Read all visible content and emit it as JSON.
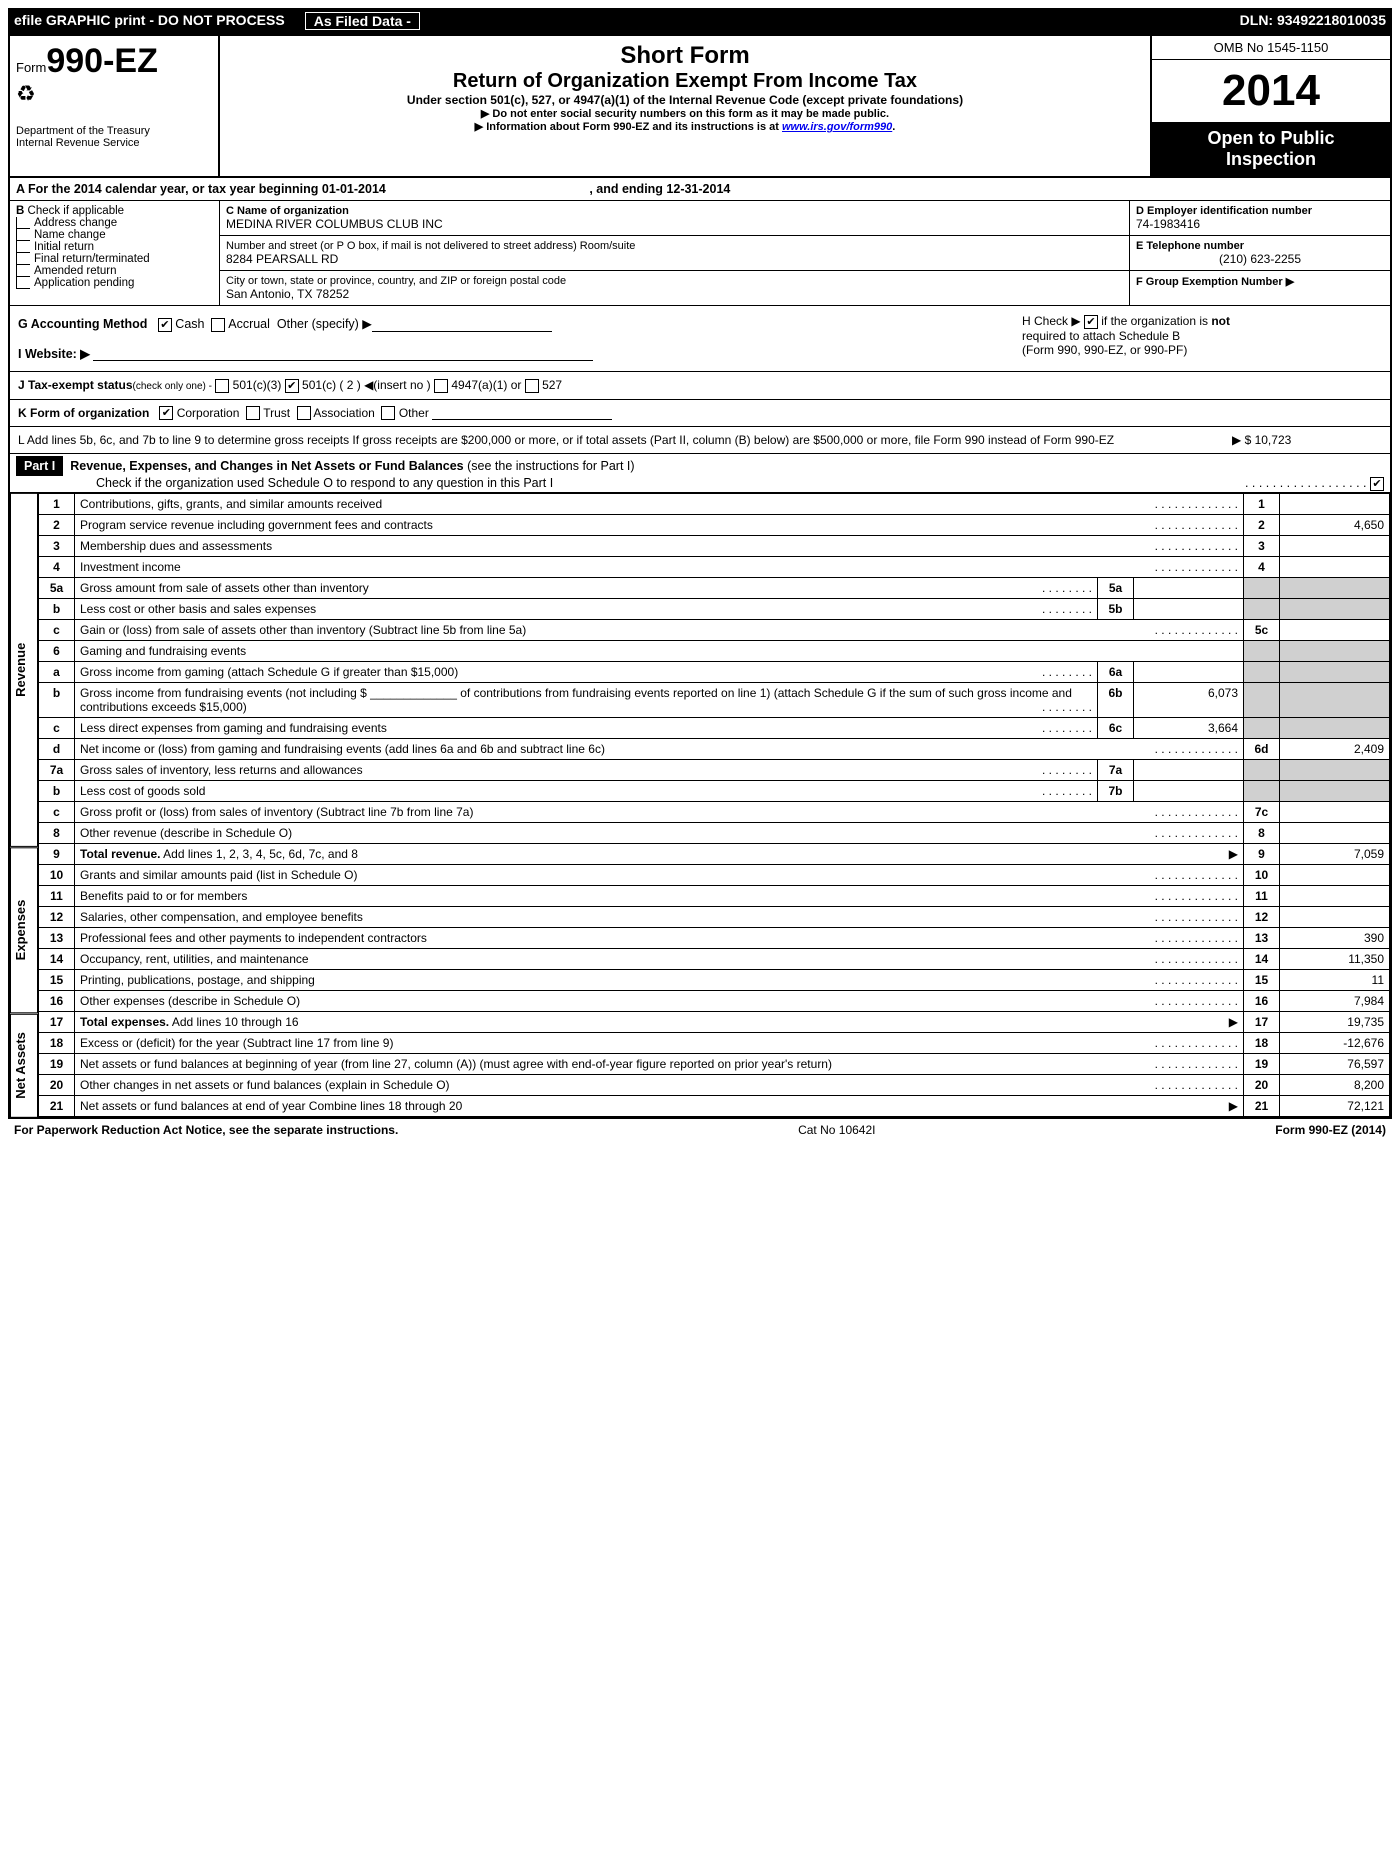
{
  "topbar": {
    "left": "efile GRAPHIC print - DO NOT PROCESS",
    "mid": "As Filed Data -",
    "right": "DLN: 93492218010035"
  },
  "header": {
    "form_prefix": "Form",
    "form_number": "990-EZ",
    "dept1": "Department of the Treasury",
    "dept2": "Internal Revenue Service",
    "title1": "Short Form",
    "title2": "Return of Organization Exempt From Income Tax",
    "subtitle": "Under section 501(c), 527, or 4947(a)(1) of the Internal Revenue Code (except private foundations)",
    "note1": "▶ Do not enter social security numbers on this form as it may be made public.",
    "note2_pre": "▶ Information about Form 990-EZ and its instructions is at ",
    "note2_link": "www.irs.gov/form990",
    "note2_post": ".",
    "omb": "OMB No 1545-1150",
    "year": "2014",
    "open1": "Open to Public",
    "open2": "Inspection"
  },
  "rowA": {
    "text_pre": "A  For the 2014 calendar year, or tax year beginning 01-01-2014",
    "text_post": ", and ending 12-31-2014"
  },
  "colB": {
    "head": "B",
    "head2": "Check if applicable",
    "items": [
      "Address change",
      "Name change",
      "Initial return",
      "Final return/terminated",
      "Amended return",
      "Application pending"
    ]
  },
  "colC": {
    "c_label": "C Name of organization",
    "c_val": "MEDINA RIVER COLUMBUS CLUB INC",
    "street_label": "Number and street (or P O box, if mail is not delivered to street address) Room/suite",
    "street_val": "8284 PEARSALL RD",
    "city_label": "City or town, state or province, country, and ZIP or foreign postal code",
    "city_val": "San Antonio, TX  78252"
  },
  "colD": {
    "d_label": "D Employer identification number",
    "d_val": "74-1983416",
    "e_label": "E Telephone number",
    "e_val": "(210) 623-2255",
    "f_label": "F Group Exemption Number  ▶"
  },
  "ghi": {
    "g": "G Accounting Method",
    "g_cash": "Cash",
    "g_accrual": "Accrual",
    "g_other": "Other (specify) ▶",
    "i": "I Website: ▶",
    "h1_pre": "H  Check ▶",
    "h1_post": "if the organization is",
    "h1_not": "not",
    "h2": "required to attach Schedule B",
    "h3": "(Form 990, 990-EZ, or 990-PF)"
  },
  "j": {
    "pre": "J Tax-exempt status",
    "note": "(check only one) -",
    "o1": "501(c)(3)",
    "o2": "501(c) ( 2 ) ◀(insert no )",
    "o3": "4947(a)(1) or",
    "o4": "527"
  },
  "k": {
    "pre": "K Form of organization",
    "o1": "Corporation",
    "o2": "Trust",
    "o3": "Association",
    "o4": "Other"
  },
  "l": {
    "text": "L Add lines 5b, 6c, and 7b to line 9 to determine gross receipts If gross receipts are $200,000 or more, or if total assets (Part II, column (B) below) are $500,000 or more, file Form 990 instead of Form 990-EZ",
    "arrow": "▶",
    "amount": "$ 10,723"
  },
  "part1": {
    "label": "Part I",
    "title": "Revenue, Expenses, and Changes in Net Assets or Fund Balances",
    "title_note": "(see the instructions for Part I)",
    "sub": "Check if the organization used Schedule O to respond to any question in this Part I"
  },
  "sections": {
    "revenue": "Revenue",
    "expenses": "Expenses",
    "netassets": "Net Assets"
  },
  "lines": [
    {
      "n": "1",
      "desc": "Contributions, gifts, grants, and similar amounts received",
      "rn": "1",
      "amt": ""
    },
    {
      "n": "2",
      "desc": "Program service revenue including government fees and contracts",
      "rn": "2",
      "amt": "4,650"
    },
    {
      "n": "3",
      "desc": "Membership dues and assessments",
      "rn": "3",
      "amt": ""
    },
    {
      "n": "4",
      "desc": "Investment income",
      "rn": "4",
      "amt": ""
    },
    {
      "n": "5a",
      "desc": "Gross amount from sale of assets other than inventory",
      "sub": "5a",
      "subamt": ""
    },
    {
      "n": "b",
      "desc": "Less  cost or other basis and sales expenses",
      "sub": "5b",
      "subamt": ""
    },
    {
      "n": "c",
      "desc": "Gain or (loss) from sale of assets other than inventory (Subtract line 5b from line 5a)",
      "rn": "5c",
      "amt": ""
    },
    {
      "n": "6",
      "desc": "Gaming and fundraising events"
    },
    {
      "n": "a",
      "desc": "Gross income from gaming (attach Schedule G if greater than $15,000)",
      "sub": "6a",
      "subamt": ""
    },
    {
      "n": "b",
      "desc": "Gross income from fundraising events (not including $ _____________ of contributions from fundraising events reported on line 1) (attach Schedule G if the sum of such gross income and contributions exceeds $15,000)",
      "sub": "6b",
      "subamt": "6,073"
    },
    {
      "n": "c",
      "desc": "Less  direct expenses from gaming and fundraising events",
      "sub": "6c",
      "subamt": "3,664"
    },
    {
      "n": "d",
      "desc": "Net income or (loss) from gaming and fundraising events (add lines 6a and 6b and subtract line 6c)",
      "rn": "6d",
      "amt": "2,409"
    },
    {
      "n": "7a",
      "desc": "Gross sales of inventory, less returns and allowances",
      "sub": "7a",
      "subamt": ""
    },
    {
      "n": "b",
      "desc": "Less  cost of goods sold",
      "sub": "7b",
      "subamt": ""
    },
    {
      "n": "c",
      "desc": "Gross profit or (loss) from sales of inventory (Subtract line 7b from line 7a)",
      "rn": "7c",
      "amt": ""
    },
    {
      "n": "8",
      "desc": "Other revenue (describe in Schedule O)",
      "rn": "8",
      "amt": ""
    },
    {
      "n": "9",
      "desc": "Total revenue. Add lines 1, 2, 3, 4, 5c, 6d, 7c, and 8",
      "rn": "9",
      "amt": "7,059",
      "bold": true,
      "arrow": true
    }
  ],
  "expenses": [
    {
      "n": "10",
      "desc": "Grants and similar amounts paid (list in Schedule O)",
      "rn": "10",
      "amt": ""
    },
    {
      "n": "11",
      "desc": "Benefits paid to or for members",
      "rn": "11",
      "amt": ""
    },
    {
      "n": "12",
      "desc": "Salaries, other compensation, and employee benefits",
      "rn": "12",
      "amt": ""
    },
    {
      "n": "13",
      "desc": "Professional fees and other payments to independent contractors",
      "rn": "13",
      "amt": "390"
    },
    {
      "n": "14",
      "desc": "Occupancy, rent, utilities, and maintenance",
      "rn": "14",
      "amt": "11,350"
    },
    {
      "n": "15",
      "desc": "Printing, publications, postage, and shipping",
      "rn": "15",
      "amt": "11"
    },
    {
      "n": "16",
      "desc": "Other expenses (describe in Schedule O)",
      "rn": "16",
      "amt": "7,984"
    },
    {
      "n": "17",
      "desc": "Total expenses. Add lines 10 through 16",
      "rn": "17",
      "amt": "19,735",
      "bold": true,
      "arrow": true
    }
  ],
  "netassets": [
    {
      "n": "18",
      "desc": "Excess or (deficit) for the year (Subtract line 17 from line 9)",
      "rn": "18",
      "amt": "-12,676"
    },
    {
      "n": "19",
      "desc": "Net assets or fund balances at beginning of year (from line 27, column (A)) (must agree with end-of-year figure reported on prior year's return)",
      "rn": "19",
      "amt": "76,597"
    },
    {
      "n": "20",
      "desc": "Other changes in net assets or fund balances (explain in Schedule O)",
      "rn": "20",
      "amt": "8,200"
    },
    {
      "n": "21",
      "desc": "Net assets or fund balances at end of year Combine lines 18 through 20",
      "rn": "21",
      "amt": "72,121",
      "arrow": true
    }
  ],
  "footer": {
    "left": "For Paperwork Reduction Act Notice, see the separate instructions.",
    "mid": "Cat No 10642I",
    "right": "Form 990-EZ (2014)"
  }
}
